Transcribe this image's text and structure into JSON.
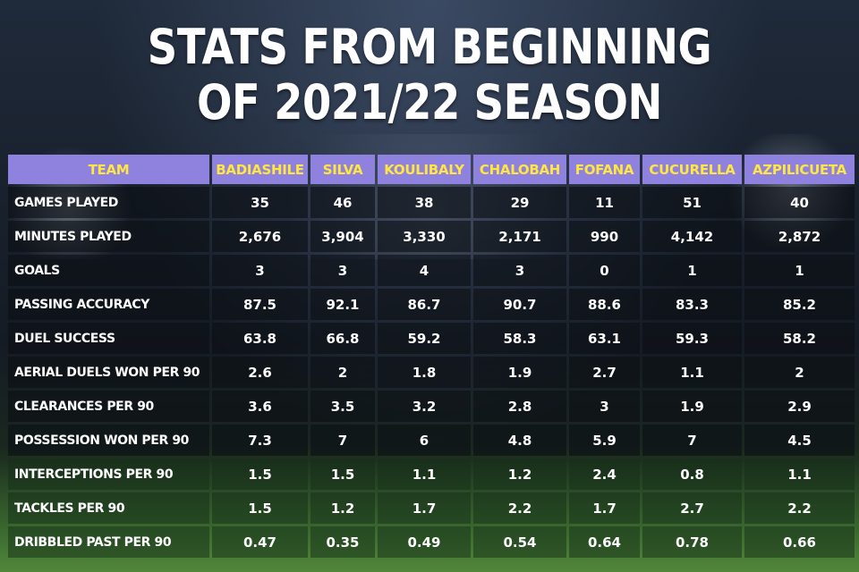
{
  "title_line1": "STATS FROM BEGINNING",
  "title_line2": "OF 2021/22 SEASON",
  "colors": {
    "header_bg": "#8f82df",
    "header_text": "#ffe640",
    "cell_text": "#ffffff"
  },
  "chart_data": {
    "type": "table",
    "title": "STATS FROM BEGINNING OF 2021/22 SEASON",
    "header_label": "TEAM",
    "columns": [
      "BADIASHILE",
      "SILVA",
      "KOULIBALY",
      "CHALOBAH",
      "FOFANA",
      "CUCURELLA",
      "AZPILICUETA"
    ],
    "rows": [
      {
        "label": "GAMES PLAYED",
        "values": [
          "35",
          "46",
          "38",
          "29",
          "11",
          "51",
          "40"
        ]
      },
      {
        "label": "MINUTES PLAYED",
        "values": [
          "2,676",
          "3,904",
          "3,330",
          "2,171",
          "990",
          "4,142",
          "2,872"
        ]
      },
      {
        "label": "GOALS",
        "values": [
          "3",
          "3",
          "4",
          "3",
          "0",
          "1",
          "1"
        ]
      },
      {
        "label": "PASSING ACCURACY",
        "values": [
          "87.5",
          "92.1",
          "86.7",
          "90.7",
          "88.6",
          "83.3",
          "85.2"
        ]
      },
      {
        "label": "DUEL SUCCESS",
        "values": [
          "63.8",
          "66.8",
          "59.2",
          "58.3",
          "63.1",
          "59.3",
          "58.2"
        ]
      },
      {
        "label": "AERIAL DUELS WON PER 90",
        "values": [
          "2.6",
          "2",
          "1.8",
          "1.9",
          "2.7",
          "1.1",
          "2"
        ]
      },
      {
        "label": "CLEARANCES PER 90",
        "values": [
          "3.6",
          "3.5",
          "3.2",
          "2.8",
          "3",
          "1.9",
          "2.9"
        ]
      },
      {
        "label": "POSSESSION WON PER 90",
        "values": [
          "7.3",
          "7",
          "6",
          "4.8",
          "5.9",
          "7",
          "4.5"
        ]
      },
      {
        "label": "INTERCEPTIONS PER 90",
        "values": [
          "1.5",
          "1.5",
          "1.1",
          "1.2",
          "2.4",
          "0.8",
          "1.1"
        ]
      },
      {
        "label": "TACKLES PER 90",
        "values": [
          "1.5",
          "1.2",
          "1.7",
          "2.2",
          "1.7",
          "2.7",
          "2.2"
        ]
      },
      {
        "label": "DRIBBLED PAST PER 90",
        "values": [
          "0.47",
          "0.35",
          "0.49",
          "0.54",
          "0.64",
          "0.78",
          "0.66"
        ]
      }
    ]
  }
}
